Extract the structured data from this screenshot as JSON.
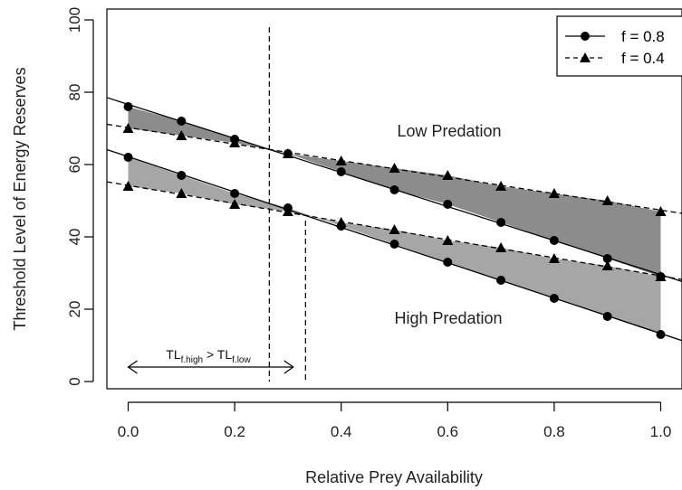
{
  "chart_data": {
    "type": "line",
    "xlabel": "Relative Prey Availability",
    "ylabel": "Threshold Level of Energy Reserves",
    "xlim": [
      -0.04,
      1.04
    ],
    "ylim": [
      -2,
      103
    ],
    "x_ticks": [
      0.0,
      0.2,
      0.4,
      0.6,
      0.8,
      1.0
    ],
    "x_tick_labels": [
      "0.0",
      "0.2",
      "0.4",
      "0.6",
      "0.8",
      "1.0"
    ],
    "y_ticks": [
      0,
      20,
      40,
      60,
      80,
      100
    ],
    "y_tick_labels": [
      "0",
      "20",
      "40",
      "60",
      "80",
      "100"
    ],
    "x": [
      0.0,
      0.1,
      0.2,
      0.3,
      0.4,
      0.5,
      0.6,
      0.7,
      0.8,
      0.9,
      1.0
    ],
    "series": [
      {
        "name": "f = 0.8",
        "group": "Low Predation",
        "marker": "circle",
        "line": "solid",
        "values": [
          76,
          72,
          67,
          63,
          58,
          53,
          49,
          44,
          39,
          34,
          29
        ]
      },
      {
        "name": "f = 0.4",
        "group": "Low Predation",
        "marker": "triangle",
        "line": "dashed",
        "values": [
          70,
          68,
          66,
          63,
          61,
          59,
          57,
          54,
          52,
          50,
          47
        ]
      },
      {
        "name": "f = 0.8",
        "group": "High Predation",
        "marker": "circle",
        "line": "solid",
        "values": [
          62,
          57,
          52,
          48,
          43,
          38,
          33,
          28,
          23,
          18,
          13
        ]
      },
      {
        "name": "f = 0.4",
        "group": "High Predation",
        "marker": "triangle",
        "line": "dashed",
        "values": [
          54,
          52,
          49,
          47,
          44,
          42,
          39,
          37,
          34,
          32,
          29
        ]
      }
    ],
    "crossover_lines": [
      {
        "group": "Low Predation",
        "x": 0.265
      },
      {
        "group": "High Predation",
        "x": 0.333
      }
    ],
    "annotations": {
      "low": "Low Predation",
      "high": "High Predation",
      "arrow_label": {
        "base1": "TL",
        "sub1": "f.high",
        "mid": " > ",
        "base2": "TL",
        "sub2": "f.low"
      },
      "arrow_range": [
        0.0,
        0.31
      ],
      "arrow_y": 4
    },
    "legend": {
      "position": "top-right",
      "entries": [
        {
          "label": "f = 0.8",
          "marker": "circle",
          "line": "solid"
        },
        {
          "label": "f = 0.4",
          "marker": "triangle",
          "line": "dashed"
        }
      ]
    },
    "colors": {
      "shade_low": "#8c8c8c",
      "shade_high": "#a6a6a6",
      "ink": "#000000"
    },
    "grid": false
  }
}
